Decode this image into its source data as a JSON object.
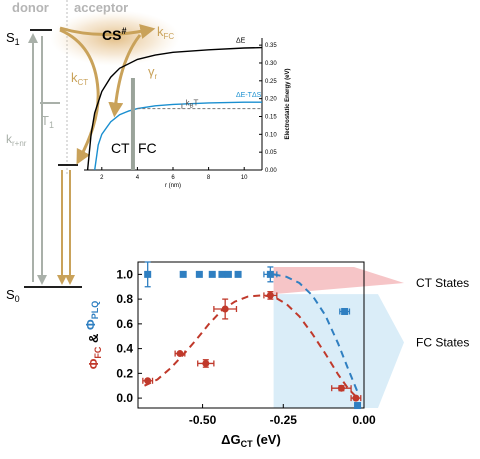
{
  "top_labels": {
    "donor": "donor",
    "acceptor": "acceptor"
  },
  "levels": {
    "s1": "S",
    "s1_sub": "1",
    "s0": "S",
    "s0_sub": "0",
    "t1": "T",
    "t1_sub": "1"
  },
  "rates": {
    "k_rnr": "k",
    "k_rnr_sub": "r+nr",
    "k_fc": "k",
    "k_fc_sub": "FC",
    "k_ct": "k",
    "k_ct_sub": "CT",
    "gamma": "γ",
    "gamma_sub": "r",
    "cs": "CS",
    "cs_sup": "#"
  },
  "colors": {
    "gold": "#c9a25a",
    "gray_arrow": "#a9b0a9",
    "red": "#c0392b",
    "blue": "#2f7fc1",
    "black_curve": "#000000",
    "blue_curve": "#1a8fd0",
    "pink_band": "#f4b7b9",
    "lightblue_band": "#cde7f5"
  },
  "inset_chart": {
    "type": "line",
    "ylabel": "Electrostatic Energy (eV)",
    "xlabel": "r (nm)",
    "xlim": [
      1,
      11
    ],
    "ylim": [
      0,
      0.37
    ],
    "x_ticks": [
      "2",
      "4",
      "6",
      "8",
      "10"
    ],
    "y_ticks": [
      "0.00",
      "0.05",
      "0.10",
      "0.15",
      "0.20",
      "0.25",
      "0.30",
      "0.35"
    ],
    "series": [
      {
        "name": "ΔE",
        "x": [
          1.2,
          1.4,
          1.6,
          2,
          2.5,
          3,
          4,
          5,
          6,
          8,
          10,
          11
        ],
        "y": [
          0.0,
          0.1,
          0.16,
          0.22,
          0.26,
          0.285,
          0.31,
          0.322,
          0.33,
          0.337,
          0.342,
          0.343
        ]
      },
      {
        "name": "ΔE-TΔS",
        "x": [
          1.6,
          1.8,
          2,
          2.5,
          3,
          3.5,
          4,
          5,
          6,
          8,
          10,
          11
        ],
        "y": [
          0.0,
          0.07,
          0.1,
          0.135,
          0.155,
          0.165,
          0.172,
          0.18,
          0.184,
          0.188,
          0.19,
          0.19
        ]
      }
    ],
    "labels": {
      "ct": "CT",
      "fc": "FC",
      "kbt": "k",
      "kbt_sub": "B",
      "kbt_end": "T"
    }
  },
  "chart_data": {
    "type": "scatter",
    "xlabel": "ΔG",
    "xlabel_sub": "CT",
    "xlabel_unit": " (eV)",
    "ylabel_parts": [
      "Φ",
      "FC",
      " & ",
      "Φ",
      "PLQ"
    ],
    "xlim": [
      -0.7,
      0.0
    ],
    "ylim": [
      -0.08,
      1.1
    ],
    "x_ticks": [
      "-0.50",
      "-0.25",
      "0.00"
    ],
    "x_tick_values": [
      -0.5,
      -0.25,
      0.0
    ],
    "y_ticks": [
      "0.0",
      "0.2",
      "0.4",
      "0.6",
      "0.8",
      "1.0"
    ],
    "y_tick_values": [
      0.0,
      0.2,
      0.4,
      0.6,
      0.8,
      1.0
    ],
    "series": [
      {
        "color": "#c0392b",
        "points": [
          {
            "x": -0.67,
            "y": 0.14,
            "xerr": 0.015,
            "yerr": 0.0
          },
          {
            "x": -0.57,
            "y": 0.36,
            "xerr": 0.015,
            "yerr": 0.0
          },
          {
            "x": -0.49,
            "y": 0.28,
            "xerr": 0.025,
            "yerr": 0.03
          },
          {
            "x": -0.43,
            "y": 0.72,
            "xerr": 0.035,
            "yerr": 0.08
          },
          {
            "x": -0.29,
            "y": 0.83,
            "xerr": 0.02,
            "yerr": 0.03
          },
          {
            "x": -0.07,
            "y": 0.08,
            "xerr": 0.03,
            "yerr": 0.02
          },
          {
            "x": -0.025,
            "y": 0.0,
            "xerr": 0.015,
            "yerr": 0.0
          }
        ]
      },
      {
        "color": "#2f7fc1",
        "points": [
          {
            "x": -0.67,
            "y": 1.0,
            "xerr": 0.0,
            "yerr": 0.1
          },
          {
            "x": -0.56,
            "y": 1.0,
            "xerr": 0.0,
            "yerr": 0.0
          },
          {
            "x": -0.51,
            "y": 1.0,
            "xerr": 0.0,
            "yerr": 0.0
          },
          {
            "x": -0.47,
            "y": 1.0,
            "xerr": 0.0,
            "yerr": 0.0
          },
          {
            "x": -0.44,
            "y": 1.0,
            "xerr": 0.0,
            "yerr": 0.0
          },
          {
            "x": -0.42,
            "y": 1.0,
            "xerr": 0.0,
            "yerr": 0.0
          },
          {
            "x": -0.39,
            "y": 1.0,
            "xerr": 0.0,
            "yerr": 0.0
          },
          {
            "x": -0.29,
            "y": 1.0,
            "xerr": 0.02,
            "yerr": 0.06
          },
          {
            "x": -0.06,
            "y": 0.7,
            "xerr": 0.015,
            "yerr": 0.0
          },
          {
            "x": -0.02,
            "y": -0.06,
            "xerr": 0.0,
            "yerr": 0.0
          }
        ]
      }
    ],
    "fit_curves": [
      {
        "color": "#c0392b",
        "x": [
          -0.68,
          -0.64,
          -0.6,
          -0.56,
          -0.52,
          -0.48,
          -0.44,
          -0.4,
          -0.36,
          -0.32,
          -0.28,
          -0.24,
          -0.2,
          -0.16,
          -0.12,
          -0.08,
          -0.05,
          -0.02
        ],
        "y": [
          0.1,
          0.15,
          0.24,
          0.35,
          0.47,
          0.6,
          0.71,
          0.78,
          0.82,
          0.83,
          0.82,
          0.76,
          0.66,
          0.52,
          0.36,
          0.19,
          0.08,
          0.0
        ]
      },
      {
        "color": "#2f7fc1",
        "x": [
          -0.28,
          -0.24,
          -0.2,
          -0.16,
          -0.12,
          -0.08,
          -0.05,
          -0.02
        ],
        "y": [
          1.0,
          0.98,
          0.93,
          0.83,
          0.67,
          0.44,
          0.24,
          0.05
        ]
      }
    ],
    "bands": {
      "ct": "CT States",
      "fc": "FC States"
    }
  }
}
